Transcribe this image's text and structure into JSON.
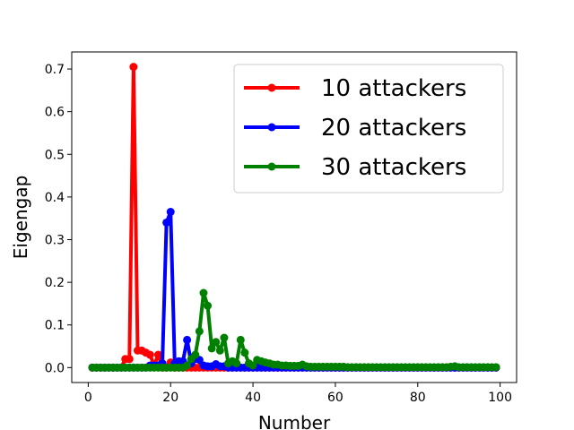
{
  "chart_data": {
    "type": "line",
    "title": "",
    "xlabel": "Number",
    "ylabel": "Eigengap",
    "xlim": [
      -4,
      104
    ],
    "ylim": [
      -0.035,
      0.74
    ],
    "xticks": [
      "0",
      "20",
      "40",
      "60",
      "80",
      "100"
    ],
    "yticks": [
      "0.0",
      "0.1",
      "0.2",
      "0.3",
      "0.4",
      "0.5",
      "0.6",
      "0.7"
    ],
    "grid": false,
    "legend_position": "top-right",
    "series": [
      {
        "name": "10 attackers",
        "color": "#ff0000",
        "points": [
          [
            1,
            0
          ],
          [
            2,
            0
          ],
          [
            3,
            0
          ],
          [
            4,
            0
          ],
          [
            5,
            0
          ],
          [
            6,
            0
          ],
          [
            7,
            0
          ],
          [
            8,
            0
          ],
          [
            9,
            0.02
          ],
          [
            10,
            0.02
          ],
          [
            11,
            0.705
          ],
          [
            12,
            0.04
          ],
          [
            13,
            0.04
          ],
          [
            14,
            0.035
          ],
          [
            15,
            0.03
          ],
          [
            16,
            0.005
          ],
          [
            17,
            0.03
          ],
          [
            18,
            0
          ],
          [
            19,
            0
          ],
          [
            20,
            0.012
          ],
          [
            21,
            0
          ],
          [
            22,
            0
          ],
          [
            23,
            0
          ],
          [
            24,
            0
          ],
          [
            25,
            0
          ],
          [
            26,
            0
          ],
          [
            27,
            0
          ],
          [
            28,
            0
          ],
          [
            29,
            0
          ],
          [
            30,
            0
          ],
          [
            31,
            0
          ],
          [
            32,
            0
          ],
          [
            33,
            0
          ],
          [
            34,
            0
          ],
          [
            35,
            0
          ],
          [
            36,
            0
          ],
          [
            37,
            0
          ],
          [
            38,
            0
          ],
          [
            39,
            0
          ],
          [
            40,
            0
          ],
          [
            41,
            0
          ],
          [
            42,
            0
          ],
          [
            43,
            0
          ],
          [
            44,
            0
          ],
          [
            45,
            0
          ],
          [
            46,
            0
          ],
          [
            47,
            0
          ],
          [
            48,
            0
          ],
          [
            49,
            0
          ],
          [
            50,
            0
          ],
          [
            51,
            0
          ],
          [
            52,
            0
          ],
          [
            53,
            0
          ],
          [
            54,
            0
          ],
          [
            55,
            0
          ],
          [
            56,
            0
          ],
          [
            57,
            0
          ],
          [
            58,
            0
          ],
          [
            59,
            0
          ],
          [
            60,
            0
          ],
          [
            61,
            0
          ],
          [
            62,
            0
          ],
          [
            63,
            0
          ],
          [
            64,
            0
          ],
          [
            65,
            0
          ],
          [
            66,
            0
          ],
          [
            67,
            0
          ],
          [
            68,
            0
          ],
          [
            69,
            0
          ],
          [
            70,
            0
          ],
          [
            71,
            0
          ],
          [
            72,
            0
          ],
          [
            73,
            0
          ],
          [
            74,
            0
          ],
          [
            75,
            0
          ],
          [
            76,
            0
          ],
          [
            77,
            0
          ],
          [
            78,
            0
          ],
          [
            79,
            0
          ],
          [
            80,
            0
          ],
          [
            81,
            0
          ],
          [
            82,
            0
          ],
          [
            83,
            0
          ],
          [
            84,
            0
          ],
          [
            85,
            0
          ],
          [
            86,
            0
          ],
          [
            87,
            0
          ],
          [
            88,
            0
          ],
          [
            89,
            0
          ],
          [
            90,
            0
          ],
          [
            91,
            0
          ],
          [
            92,
            0
          ],
          [
            93,
            0
          ],
          [
            94,
            0
          ],
          [
            95,
            0
          ],
          [
            96,
            0
          ],
          [
            97,
            0
          ],
          [
            98,
            0
          ],
          [
            99,
            0
          ]
        ]
      },
      {
        "name": "20 attackers",
        "color": "#0000ff",
        "points": [
          [
            1,
            0
          ],
          [
            2,
            0
          ],
          [
            3,
            0
          ],
          [
            4,
            0
          ],
          [
            5,
            0
          ],
          [
            6,
            0
          ],
          [
            7,
            0
          ],
          [
            8,
            0
          ],
          [
            9,
            0
          ],
          [
            10,
            0
          ],
          [
            11,
            0
          ],
          [
            12,
            0
          ],
          [
            13,
            0
          ],
          [
            14,
            0
          ],
          [
            15,
            0.005
          ],
          [
            16,
            0.005
          ],
          [
            17,
            0.005
          ],
          [
            18,
            0.01
          ],
          [
            19,
            0.34
          ],
          [
            20,
            0.365
          ],
          [
            21,
            0.01
          ],
          [
            22,
            0.015
          ],
          [
            23,
            0.015
          ],
          [
            24,
            0.065
          ],
          [
            25,
            0.01
          ],
          [
            26,
            0.02
          ],
          [
            27,
            0.018
          ],
          [
            28,
            0.005
          ],
          [
            29,
            0.003
          ],
          [
            30,
            0.003
          ],
          [
            31,
            0.008
          ],
          [
            32,
            0.003
          ],
          [
            33,
            0.003
          ],
          [
            34,
            0
          ],
          [
            35,
            0
          ],
          [
            36,
            0
          ],
          [
            37,
            0
          ],
          [
            38,
            0
          ],
          [
            39,
            0
          ],
          [
            40,
            0
          ],
          [
            41,
            0
          ],
          [
            42,
            0
          ],
          [
            43,
            0
          ],
          [
            44,
            0
          ],
          [
            45,
            0
          ],
          [
            46,
            0
          ],
          [
            47,
            0
          ],
          [
            48,
            0
          ],
          [
            49,
            0
          ],
          [
            50,
            0
          ],
          [
            51,
            0
          ],
          [
            52,
            0
          ],
          [
            53,
            0
          ],
          [
            54,
            0
          ],
          [
            55,
            0
          ],
          [
            56,
            0
          ],
          [
            57,
            0
          ],
          [
            58,
            0
          ],
          [
            59,
            0
          ],
          [
            60,
            0
          ],
          [
            61,
            0
          ],
          [
            62,
            0
          ],
          [
            63,
            0
          ],
          [
            64,
            0
          ],
          [
            65,
            0
          ],
          [
            66,
            0
          ],
          [
            67,
            0
          ],
          [
            68,
            0
          ],
          [
            69,
            0
          ],
          [
            70,
            0
          ],
          [
            71,
            0
          ],
          [
            72,
            0
          ],
          [
            73,
            0
          ],
          [
            74,
            0
          ],
          [
            75,
            0
          ],
          [
            76,
            0
          ],
          [
            77,
            0
          ],
          [
            78,
            0
          ],
          [
            79,
            0
          ],
          [
            80,
            0
          ],
          [
            81,
            0
          ],
          [
            82,
            0
          ],
          [
            83,
            0
          ],
          [
            84,
            0
          ],
          [
            85,
            0
          ],
          [
            86,
            0
          ],
          [
            87,
            0
          ],
          [
            88,
            0
          ],
          [
            89,
            0
          ],
          [
            90,
            0
          ],
          [
            91,
            0
          ],
          [
            92,
            0
          ],
          [
            93,
            0
          ],
          [
            94,
            0
          ],
          [
            95,
            0
          ],
          [
            96,
            0
          ],
          [
            97,
            0
          ],
          [
            98,
            0
          ],
          [
            99,
            0
          ]
        ]
      },
      {
        "name": "30 attackers",
        "color": "#008000",
        "points": [
          [
            1,
            0
          ],
          [
            2,
            0
          ],
          [
            3,
            0
          ],
          [
            4,
            0
          ],
          [
            5,
            0
          ],
          [
            6,
            0
          ],
          [
            7,
            0
          ],
          [
            8,
            0
          ],
          [
            9,
            0
          ],
          [
            10,
            0
          ],
          [
            11,
            0
          ],
          [
            12,
            0
          ],
          [
            13,
            0
          ],
          [
            14,
            0
          ],
          [
            15,
            0
          ],
          [
            16,
            0
          ],
          [
            17,
            0
          ],
          [
            18,
            0
          ],
          [
            19,
            0
          ],
          [
            20,
            0
          ],
          [
            21,
            0
          ],
          [
            22,
            0
          ],
          [
            23,
            0
          ],
          [
            24,
            0.005
          ],
          [
            25,
            0.02
          ],
          [
            26,
            0.03
          ],
          [
            27,
            0.085
          ],
          [
            28,
            0.175
          ],
          [
            29,
            0.145
          ],
          [
            30,
            0.045
          ],
          [
            31,
            0.06
          ],
          [
            32,
            0.04
          ],
          [
            33,
            0.07
          ],
          [
            34,
            0.01
          ],
          [
            35,
            0.015
          ],
          [
            36,
            0.01
          ],
          [
            37,
            0.065
          ],
          [
            38,
            0.035
          ],
          [
            39,
            0.01
          ],
          [
            40,
            0.005
          ],
          [
            41,
            0.018
          ],
          [
            42,
            0.015
          ],
          [
            43,
            0.012
          ],
          [
            44,
            0.01
          ],
          [
            45,
            0.007
          ],
          [
            46,
            0.007
          ],
          [
            47,
            0.005
          ],
          [
            48,
            0.005
          ],
          [
            49,
            0.004
          ],
          [
            50,
            0.004
          ],
          [
            51,
            0.004
          ],
          [
            52,
            0.007
          ],
          [
            53,
            0.003
          ],
          [
            54,
            0.002
          ],
          [
            55,
            0.002
          ],
          [
            56,
            0.002
          ],
          [
            57,
            0.002
          ],
          [
            58,
            0.002
          ],
          [
            59,
            0.002
          ],
          [
            60,
            0.002
          ],
          [
            61,
            0.002
          ],
          [
            62,
            0.002
          ],
          [
            63,
            0.001
          ],
          [
            64,
            0.001
          ],
          [
            65,
            0.001
          ],
          [
            66,
            0.001
          ],
          [
            67,
            0.001
          ],
          [
            68,
            0.001
          ],
          [
            69,
            0.001
          ],
          [
            70,
            0.001
          ],
          [
            71,
            0.001
          ],
          [
            72,
            0.001
          ],
          [
            73,
            0.001
          ],
          [
            74,
            0.001
          ],
          [
            75,
            0.001
          ],
          [
            76,
            0.001
          ],
          [
            77,
            0.001
          ],
          [
            78,
            0.001
          ],
          [
            79,
            0.001
          ],
          [
            80,
            0.001
          ],
          [
            81,
            0.001
          ],
          [
            82,
            0.001
          ],
          [
            83,
            0.001
          ],
          [
            84,
            0.001
          ],
          [
            85,
            0.001
          ],
          [
            86,
            0.001
          ],
          [
            87,
            0.001
          ],
          [
            88,
            0.002
          ],
          [
            89,
            0.003
          ],
          [
            90,
            0.001
          ],
          [
            91,
            0.001
          ],
          [
            92,
            0.001
          ],
          [
            93,
            0.001
          ],
          [
            94,
            0.001
          ],
          [
            95,
            0.001
          ],
          [
            96,
            0.001
          ],
          [
            97,
            0.001
          ],
          [
            98,
            0.001
          ],
          [
            99,
            0.001
          ]
        ]
      }
    ]
  }
}
